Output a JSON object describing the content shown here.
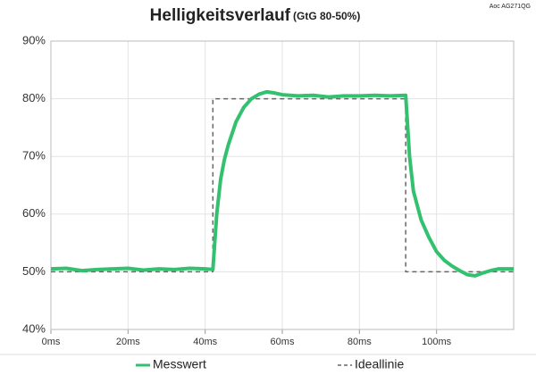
{
  "chart_data": {
    "type": "line",
    "title": "Helligkeitsverlauf",
    "subtitle": "(GtG 80-50%)",
    "annotation": "Aoc AG271QG",
    "xlim": [
      0,
      120
    ],
    "ylim": [
      40,
      90
    ],
    "xticks": [
      {
        "value": 0,
        "label": "0ms"
      },
      {
        "value": 20,
        "label": "20ms"
      },
      {
        "value": 40,
        "label": "40ms"
      },
      {
        "value": 60,
        "label": "60ms"
      },
      {
        "value": 80,
        "label": "80ms"
      },
      {
        "value": 100,
        "label": "100ms"
      }
    ],
    "yticks": [
      {
        "value": 40,
        "label": "40%"
      },
      {
        "value": 50,
        "label": "50%"
      },
      {
        "value": 60,
        "label": "60%"
      },
      {
        "value": 70,
        "label": "70%"
      },
      {
        "value": 80,
        "label": "80%"
      },
      {
        "value": 90,
        "label": "90%"
      }
    ],
    "grid": true,
    "series": [
      {
        "name": "Messwert",
        "color": "#33c170",
        "dashed": false,
        "x": [
          0,
          4,
          8,
          12,
          16,
          20,
          24,
          28,
          32,
          36,
          40,
          42,
          43,
          44,
          45,
          46,
          48,
          50,
          52,
          54,
          56,
          58,
          60,
          64,
          68,
          72,
          76,
          80,
          84,
          88,
          92,
          93,
          94,
          95,
          96,
          98,
          100,
          102,
          104,
          106,
          108,
          110,
          112,
          114,
          116,
          120
        ],
        "values": [
          50.5,
          50.6,
          50.2,
          50.4,
          50.5,
          50.6,
          50.3,
          50.5,
          50.4,
          50.6,
          50.5,
          50.4,
          60,
          66,
          69.5,
          72,
          76,
          78.5,
          80,
          80.8,
          81.2,
          81,
          80.7,
          80.5,
          80.6,
          80.3,
          80.5,
          80.5,
          80.6,
          80.5,
          80.6,
          70,
          64,
          61.5,
          59,
          56,
          53.5,
          52,
          51,
          50.2,
          49.5,
          49.3,
          49.8,
          50.2,
          50.5,
          50.5
        ]
      },
      {
        "name": "Ideallinie",
        "color": "#666666",
        "dashed": true,
        "x": [
          0,
          42,
          42,
          92,
          92,
          120
        ],
        "values": [
          50,
          50,
          80,
          80,
          50,
          50
        ]
      }
    ]
  }
}
